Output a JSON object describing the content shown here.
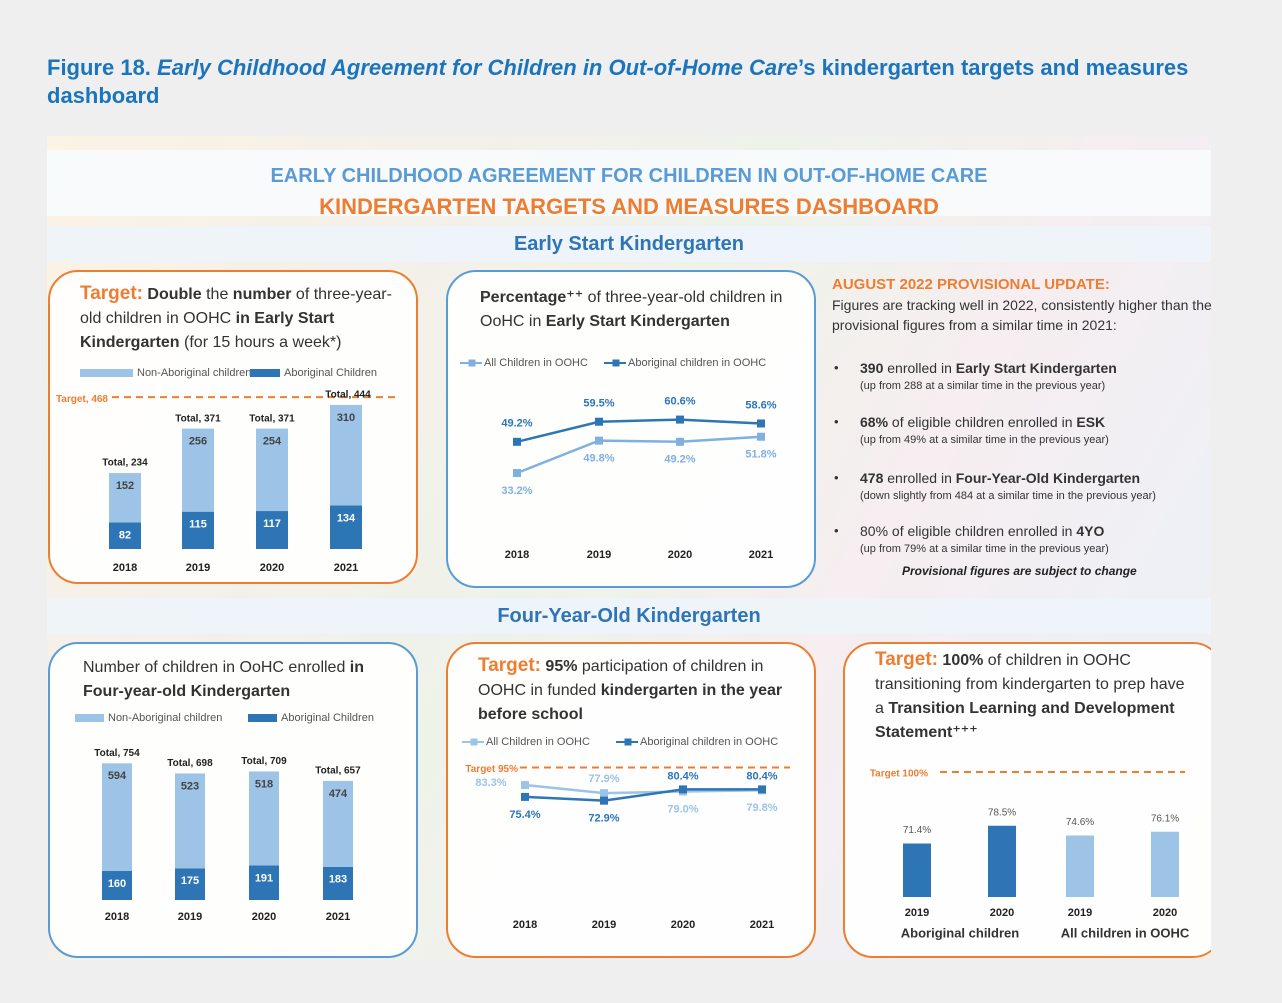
{
  "caption": [
    {
      "text": "Figure 18. ",
      "style": "bold"
    },
    {
      "text": "Early Childhood Agreement for Children in Out-of-Home Care",
      "style": "italic"
    },
    {
      "text": "’s kindergarten targets and measures dashboard"
    }
  ],
  "header": {
    "line1": "EARLY CHILDHOOD AGREEMENT FOR CHILDREN IN OUT-OF-HOME CARE",
    "line2": "KINDERGARTEN TARGETS AND MEASURES DASHBOARD"
  },
  "sections": [
    "Early Start Kindergarten",
    "Four-Year-Old Kindergarten"
  ],
  "update": {
    "title": "AUGUST 2022 PROVISIONAL UPDATE:",
    "intro": "Figures are tracking well in 2022, consistently higher than the provisional figures from a similar time in 2021:",
    "items": [
      {
        "main": [
          {
            "text": "390",
            "style": "bold"
          },
          {
            "text": " enrolled in "
          },
          {
            "text": "Early Start Kindergarten",
            "style": "bold"
          }
        ],
        "sub": "(up from 288 at a similar time in the previous year)"
      },
      {
        "main": [
          {
            "text": "68%",
            "style": "bold"
          },
          {
            "text": " of eligible children enrolled in "
          },
          {
            "text": "ESK",
            "style": "bold"
          }
        ],
        "sub": "(up from 49% at a similar time in the previous year)"
      },
      {
        "main": [
          {
            "text": "478",
            "style": "bold"
          },
          {
            "text": " enrolled in "
          },
          {
            "text": "Four-Year-Old Kindergarten",
            "style": "bold"
          }
        ],
        "sub": "(down slightly from 484 at a similar time in the previous year)"
      },
      {
        "main": [
          {
            "text": "80% of eligible children enrolled in "
          },
          {
            "text": "4YO",
            "style": "bold"
          }
        ],
        "sub": "(up from 79% at a similar time in the previous year)"
      }
    ],
    "note": "Provisional figures are subject to change"
  },
  "chart_data": [
    {
      "type": "stacked_bar",
      "title": [
        {
          "text": "Target:",
          "style": "target"
        },
        {
          "text": " Double",
          "style": "bold"
        },
        {
          "text": " the "
        },
        {
          "text": "number",
          "style": "bold"
        },
        {
          "text": " of three-year-old children in OOHC "
        },
        {
          "text": "in Early Start Kindergarten",
          "style": "bold"
        },
        {
          "text": " (for 15 hours a week*)"
        }
      ],
      "categories": [
        "2018",
        "2019",
        "2020",
        "2021"
      ],
      "series": [
        {
          "name": "Non-Aboriginal children",
          "color": "#9dc3e6",
          "values": [
            152,
            256,
            254,
            310
          ]
        },
        {
          "name": "Aboriginal Children",
          "color": "#2e75b6",
          "values": [
            82,
            115,
            117,
            134
          ]
        }
      ],
      "total_labels": [
        "Total, 234",
        "Total, 371",
        "Total, 371",
        "Total, 444"
      ],
      "target": {
        "value": 468,
        "label": "Target, 468"
      },
      "ylim": [
        0,
        490
      ]
    },
    {
      "type": "line",
      "title": [
        {
          "text": "Percentage⁺⁺",
          "style": "bold"
        },
        {
          "text": " of three-year-old children in OoHC in "
        },
        {
          "text": "Early Start Kindergarten",
          "style": "bold"
        }
      ],
      "categories": [
        "2018",
        "2019",
        "2020",
        "2021"
      ],
      "series": [
        {
          "name": "All Children in OOHC",
          "color": "#7fb0df",
          "values": [
            33.2,
            49.8,
            49.2,
            51.8
          ],
          "value_labels": [
            "33.2%",
            "49.8%",
            "49.2%",
            "51.8%"
          ]
        },
        {
          "name": "Aboriginal children in OOHC",
          "color": "#2e75b6",
          "values": [
            49.2,
            59.5,
            60.6,
            58.6
          ],
          "value_labels": [
            "49.2%",
            "59.5%",
            "60.6%",
            "58.6%"
          ]
        }
      ],
      "ylim": [
        25,
        65
      ]
    },
    {
      "type": "stacked_bar",
      "title": [
        {
          "text": "Number of children in OoHC enrolled "
        },
        {
          "text": "in Four-year-old Kindergarten",
          "style": "bold"
        }
      ],
      "categories": [
        "2018",
        "2019",
        "2020",
        "2021"
      ],
      "series": [
        {
          "name": "Non-Aboriginal children",
          "color": "#9dc3e6",
          "values": [
            594,
            523,
            518,
            474
          ]
        },
        {
          "name": "Aboriginal Children",
          "color": "#2e75b6",
          "values": [
            160,
            175,
            191,
            183
          ]
        }
      ],
      "total_labels": [
        "Total, 754",
        "Total, 698",
        "Total, 709",
        "Total, 657"
      ],
      "ylim": [
        0,
        800
      ]
    },
    {
      "type": "line",
      "title": [
        {
          "text": "Target:",
          "style": "target"
        },
        {
          "text": " 95%",
          "style": "bold"
        },
        {
          "text": " participation of children in OOHC in funded "
        },
        {
          "text": "kindergarten in the year before school",
          "style": "bold"
        }
      ],
      "categories": [
        "2018",
        "2019",
        "2020",
        "2021"
      ],
      "series": [
        {
          "name": "All Children in OOHC",
          "color": "#9dc3e6",
          "values": [
            83.3,
            77.9,
            79.0,
            79.8
          ],
          "value_labels": [
            "83.3%",
            "77.9%",
            "79.0%",
            "79.8%"
          ]
        },
        {
          "name": "Aboriginal children in OOHC",
          "color": "#2e75b6",
          "values": [
            75.4,
            72.9,
            80.4,
            80.4
          ],
          "value_labels": [
            "75.4%",
            "72.9%",
            "80.4%",
            "80.4%"
          ]
        }
      ],
      "target": {
        "value": 95,
        "label": "Target 95%"
      },
      "ylim": [
        60,
        100
      ]
    },
    {
      "type": "bar",
      "title": [
        {
          "text": "Target:",
          "style": "target"
        },
        {
          "text": " 100%",
          "style": "bold"
        },
        {
          "text": " of children in OOHC transitioning from kindergarten to prep have a "
        },
        {
          "text": "Transition Learning and Development Statement⁺⁺⁺",
          "style": "bold"
        }
      ],
      "categories": [
        "2019",
        "2020",
        "2019",
        "2020"
      ],
      "group_labels": [
        "Aboriginal children",
        "All children in OOHC"
      ],
      "values": [
        71.4,
        78.5,
        74.6,
        76.1
      ],
      "value_labels": [
        "71.4%",
        "78.5%",
        "74.6%",
        "76.1%"
      ],
      "colors": [
        "#2e75b6",
        "#2e75b6",
        "#9dc3e6",
        "#9dc3e6"
      ],
      "target": {
        "value": 100,
        "label": "Target 100%"
      },
      "ylim": [
        50,
        100
      ]
    }
  ]
}
